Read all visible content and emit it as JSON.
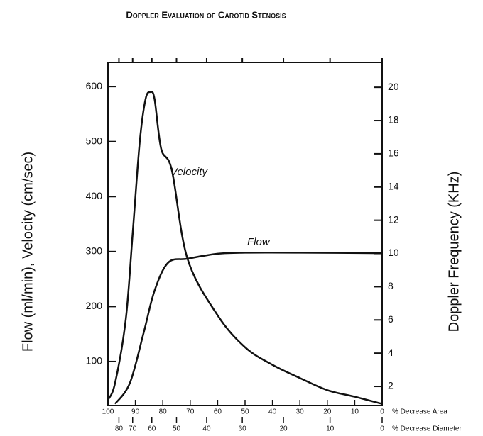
{
  "chart_data": {
    "type": "line",
    "title": "Doppler Evaluation of Carotid Stenosis",
    "ylabel": "Flow (ml/min), Velocity (cm/sec)",
    "y2label": "Doppler Frequency (KHz)",
    "xlabel": "% Decrease Area",
    "x2label": "% Decrease Diameter",
    "xlim": [
      100,
      0
    ],
    "xticks": [
      100,
      90,
      80,
      70,
      60,
      50,
      40,
      30,
      20,
      10,
      0
    ],
    "x2ticks": [
      80,
      70,
      60,
      50,
      40,
      30,
      20,
      10,
      0
    ],
    "ylim": [
      20,
      644
    ],
    "yticks": [
      100,
      200,
      300,
      400,
      500,
      600
    ],
    "y2lim": [
      0.85,
      21.5
    ],
    "y2ticks": [
      2,
      4,
      6,
      8,
      10,
      12,
      14,
      16,
      18,
      20
    ],
    "series": [
      {
        "name": "Velocity",
        "color": "#111111",
        "x": [
          100,
          97.4,
          93.5,
          91,
          88.4,
          86.3,
          84.5,
          83,
          80.6,
          76.7,
          71,
          60,
          50,
          40,
          30,
          20,
          10,
          0
        ],
        "values": [
          30,
          61,
          177,
          332,
          500,
          577,
          590,
          577,
          487,
          448,
          287,
          184,
          126,
          94,
          70,
          48,
          36,
          23
        ]
      },
      {
        "name": "Flow",
        "color": "#111111",
        "x": [
          97.4,
          92,
          87,
          83,
          78,
          71,
          60,
          50,
          30,
          0
        ],
        "values": [
          23,
          61,
          152,
          229,
          280,
          287,
          296,
          298,
          298,
          297
        ]
      }
    ]
  }
}
